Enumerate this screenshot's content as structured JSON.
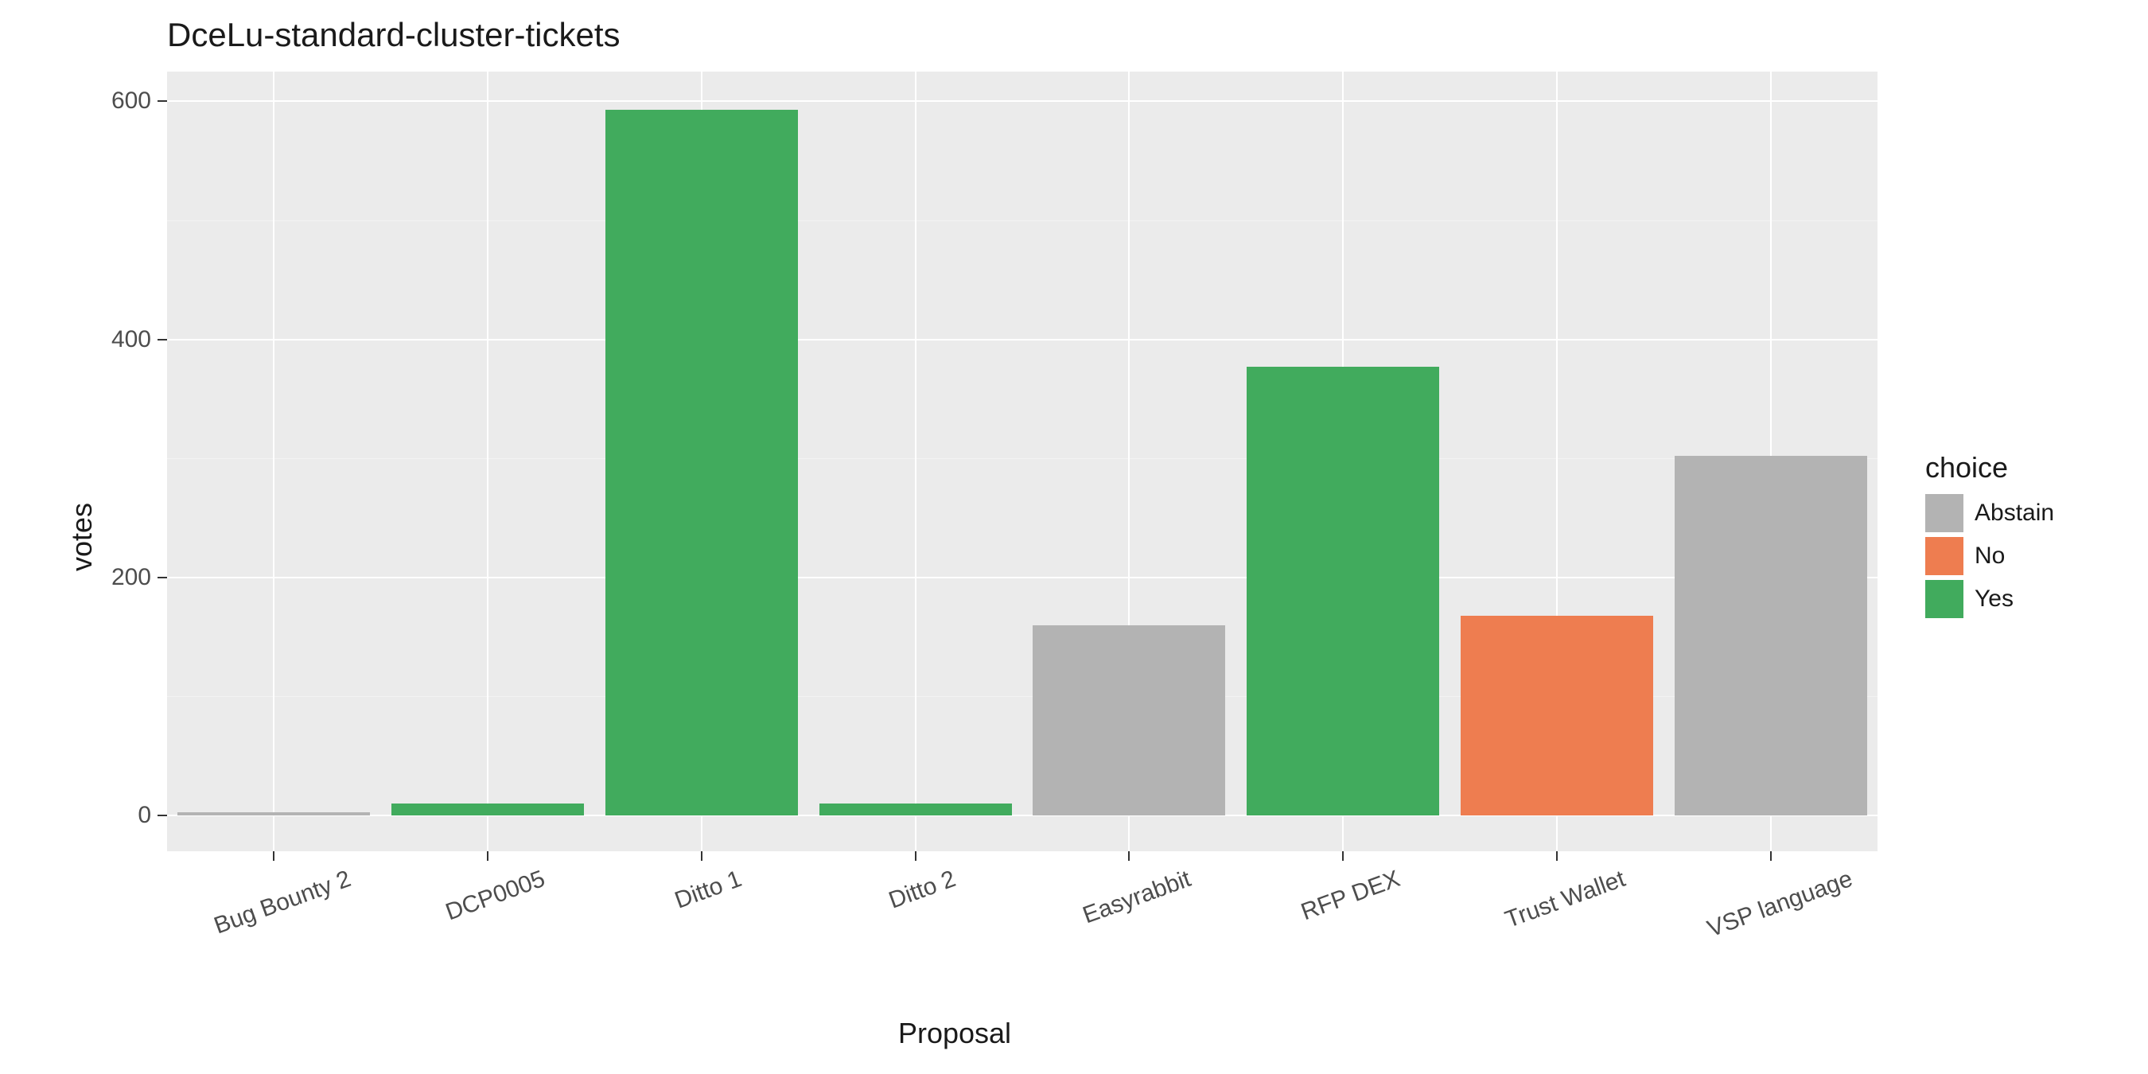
{
  "chart": {
    "type": "bar",
    "title": "DceLu-standard-cluster-tickets",
    "title_fontsize": 42,
    "x_axis_title": "Proposal",
    "y_axis_title": "votes",
    "axis_title_fontsize": 36,
    "tick_fontsize": 30,
    "background_color": "#ffffff",
    "panel_background": "#ebebeb",
    "grid_color": "#ffffff",
    "minor_grid_color": "#f3f3f3",
    "ylim": [
      -30,
      625
    ],
    "y_ticks": [
      0,
      200,
      400,
      600
    ],
    "y_minor_ticks": [
      100,
      300,
      500
    ],
    "x_label_rotation": -20,
    "bar_width_ratio": 0.9,
    "categories": [
      "Bug Bounty 2",
      "DCP0005",
      "Ditto 1",
      "Ditto 2",
      "Easyrabbit",
      "RFP DEX",
      "Trust Wallet",
      "VSP language"
    ],
    "bars": [
      {
        "category": "Bug Bounty 2",
        "value": 3,
        "choice": "Abstain"
      },
      {
        "category": "DCP0005",
        "value": 10,
        "choice": "Yes"
      },
      {
        "category": "Ditto 1",
        "value": 593,
        "choice": "Yes"
      },
      {
        "category": "Ditto 2",
        "value": 10,
        "choice": "Yes"
      },
      {
        "category": "Easyrabbit",
        "value": 160,
        "choice": "Abstain"
      },
      {
        "category": "RFP DEX",
        "value": 377,
        "choice": "Yes"
      },
      {
        "category": "Trust Wallet",
        "value": 168,
        "choice": "No"
      },
      {
        "category": "VSP language",
        "value": 302,
        "choice": "Abstain"
      }
    ],
    "legend": {
      "title": "choice",
      "items": [
        {
          "label": "Abstain",
          "color": "#b3b3b3"
        },
        {
          "label": "No",
          "color": "#ee7d50"
        },
        {
          "label": "Yes",
          "color": "#41ab5d"
        }
      ]
    },
    "choice_colors": {
      "Abstain": "#b3b3b3",
      "No": "#ee7d50",
      "Yes": "#41ab5d"
    }
  }
}
